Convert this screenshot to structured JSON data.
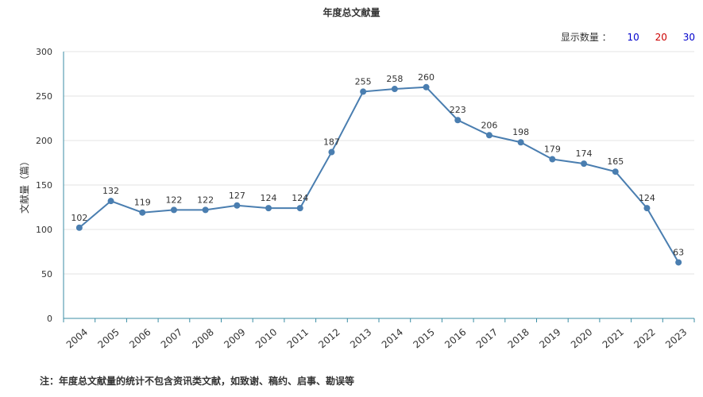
{
  "title": "年度总文献量",
  "controls": {
    "label": "显示数量 ：",
    "options": [
      {
        "label": "10",
        "color": "#0000cc"
      },
      {
        "label": "20",
        "color": "#cc0000"
      },
      {
        "label": "30",
        "color": "#0000cc"
      }
    ]
  },
  "footnote": "注：年度总文献量的统计不包含资讯类文献，如致谢、稿约、启事、勘误等",
  "colors": {
    "line": "#4a7eb0",
    "axis": "#3b8ea5",
    "grid": "#e3e3e3",
    "label": "#333333"
  },
  "chart_data": {
    "type": "line",
    "title": "年度总文献量",
    "xlabel": "",
    "ylabel": "文献量（篇）",
    "ylim": [
      0,
      300
    ],
    "yticks": [
      0,
      50,
      100,
      150,
      200,
      250,
      300
    ],
    "grid": true,
    "categories": [
      "2004",
      "2005",
      "2006",
      "2007",
      "2008",
      "2009",
      "2010",
      "2011",
      "2012",
      "2013",
      "2014",
      "2015",
      "2016",
      "2017",
      "2018",
      "2019",
      "2020",
      "2021",
      "2022",
      "2023"
    ],
    "series": [
      {
        "values": [
          102,
          132,
          119,
          122,
          122,
          127,
          124,
          124,
          187,
          255,
          258,
          260,
          223,
          206,
          198,
          179,
          174,
          165,
          124,
          63
        ]
      }
    ]
  }
}
